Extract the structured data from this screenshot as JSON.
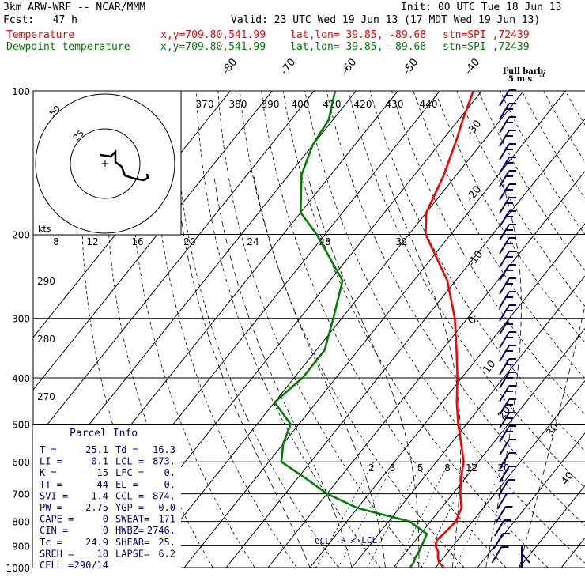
{
  "header": {
    "model": "3km ARW-WRF -- NCAR/MMM",
    "init": "Init: 00 UTC Tue 18 Jun 13",
    "fcst": "Fcst:   47 h",
    "valid": "Valid: 23 UTC Wed 19 Jun 13 (17 MDT Wed 19 Jun 13)",
    "temp_line": {
      "label": "Temperature",
      "xy": "x,y=709.80,541.99",
      "latlon": "lat,lon= 39.85, -89.68",
      "stn": "stn=SPI ,72439"
    },
    "dew_line": {
      "label": "Dewpoint temperature",
      "xy": "x,y=709.80,541.99",
      "latlon": "lat,lon= 39.85, -89.68",
      "stn": "stn=SPI ,72439"
    }
  },
  "colors": {
    "temperature": "#ff0000",
    "dewpoint": "#008000",
    "accent": "#000080"
  },
  "parcel": {
    "title": "Parcel Info",
    "rows": [
      [
        "T  =",
        "25.1",
        "Td =",
        "16.3"
      ],
      [
        "LI =",
        "0.1",
        "LCL =",
        "873."
      ],
      [
        "K  =",
        "15",
        "LFC =",
        "0."
      ],
      [
        "TT =",
        "44",
        "EL =",
        "0."
      ],
      [
        "SVI =",
        "1.4",
        "CCL =",
        "874."
      ],
      [
        "PW =",
        "2.75",
        "YGP =",
        "0.0"
      ],
      [
        "CAPE =",
        "0",
        "SWEAT=",
        "171"
      ],
      [
        "CIN =",
        "0",
        "HWBZ=",
        "2746."
      ],
      [
        "Tc =",
        "24.9",
        "SHEAR=",
        "25."
      ],
      [
        "SREH =",
        "18",
        "LAPSE=",
        "6.2"
      ],
      [
        "CELL =",
        "290/14",
        "",
        ""
      ]
    ]
  },
  "hodograph": {
    "units": "kts",
    "ring_labels": [
      "25",
      "50"
    ],
    "speed_ticks": [
      "8",
      "12",
      "16",
      "20",
      "24",
      "28",
      "32"
    ]
  },
  "barb_legend": {
    "line1": "Full barb:",
    "line2": "5 m s",
    "line3": "-1"
  },
  "markers": {
    "ccl": "CCL ->",
    "lcl": "<-LCL"
  },
  "chart_data": {
    "type": "line",
    "title": "",
    "ylabel": "",
    "y_scale": "log",
    "ylim": [
      1000,
      100
    ],
    "pressure_ticks": [
      100,
      200,
      300,
      400,
      500,
      600,
      700,
      800,
      900,
      1000
    ],
    "isotherm_labels": [
      -80,
      -70,
      -60,
      -50,
      -40,
      -30,
      -20,
      -10,
      0,
      10,
      20,
      30,
      40
    ],
    "theta_labels_top": [
      370,
      380,
      390,
      400,
      410,
      420,
      430,
      440
    ],
    "theta_labels_left": [
      290,
      280,
      270
    ],
    "mixing_ratio_labels": [
      2,
      3,
      5,
      8,
      12,
      20
    ],
    "series": [
      {
        "name": "Temperature",
        "points": [
          [
            1000,
            22
          ],
          [
            975,
            19.8
          ],
          [
            950,
            18.5
          ],
          [
            925,
            17.5
          ],
          [
            900,
            15.8
          ],
          [
            875,
            15
          ],
          [
            850,
            15.5
          ],
          [
            800,
            16
          ],
          [
            750,
            14.8
          ],
          [
            700,
            11.8
          ],
          [
            650,
            9
          ],
          [
            600,
            6.5
          ],
          [
            550,
            2.5
          ],
          [
            500,
            -2
          ],
          [
            450,
            -6.5
          ],
          [
            400,
            -11
          ],
          [
            350,
            -16.5
          ],
          [
            300,
            -23
          ],
          [
            250,
            -32
          ],
          [
            200,
            -46
          ],
          [
            180,
            -50
          ],
          [
            150,
            -53
          ],
          [
            125,
            -57
          ],
          [
            115,
            -59
          ],
          [
            100,
            -62
          ]
        ]
      },
      {
        "name": "Dewpoint temperature",
        "points": [
          [
            1000,
            13.9
          ],
          [
            975,
            13.8
          ],
          [
            950,
            13.2
          ],
          [
            925,
            13
          ],
          [
            900,
            12.5
          ],
          [
            875,
            12
          ],
          [
            850,
            11.5
          ],
          [
            800,
            5
          ],
          [
            750,
            -10
          ],
          [
            700,
            -20
          ],
          [
            650,
            -28
          ],
          [
            600,
            -37
          ],
          [
            550,
            -40
          ],
          [
            500,
            -42
          ],
          [
            450,
            -50
          ],
          [
            400,
            -48
          ],
          [
            350,
            -48
          ],
          [
            300,
            -52
          ],
          [
            250,
            -57
          ],
          [
            200,
            -72
          ],
          [
            180,
            -80
          ],
          [
            150,
            -87
          ],
          [
            130,
            -90
          ],
          [
            115,
            -91
          ],
          [
            100,
            -95
          ]
        ]
      }
    ]
  }
}
